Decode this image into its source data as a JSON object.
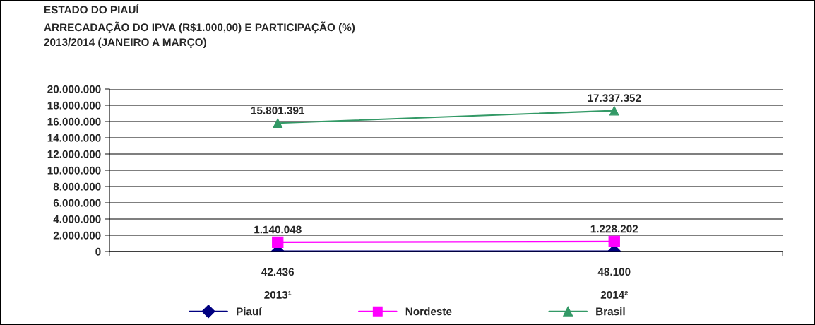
{
  "chart_data": {
    "type": "line",
    "title": "ESTADO DO PIAUÍ\nARRECADAÇÃO DO IPVA (R$1.000,00) E PARTICIPAÇÃO (%)\n2013/2014 (JANEIRO A MARÇO)",
    "categories": [
      "2013¹",
      "2014²"
    ],
    "series": [
      {
        "name": "Piauí",
        "color": "#000080",
        "marker": "diamond",
        "values": [
          42436,
          48100
        ],
        "value_labels": [
          "42.436",
          "48.100"
        ]
      },
      {
        "name": "Nordeste",
        "color": "#ff00ff",
        "marker": "square",
        "values": [
          1140048,
          1228202
        ],
        "value_labels": [
          "1.140.048",
          "1.228.202"
        ]
      },
      {
        "name": "Brasil",
        "color": "#339966",
        "marker": "triangle",
        "values": [
          15801391,
          17337352
        ],
        "value_labels": [
          "15.801.391",
          "17.337.352"
        ]
      }
    ],
    "ylim": [
      0,
      20000000
    ],
    "yticks": [
      0,
      {
        "value": 2000000,
        "label": "2.000.000"
      },
      {
        "value": 4000000,
        "label": "4.000.000"
      },
      {
        "value": 6000000,
        "label": "6.000.000"
      },
      {
        "value": 8000000,
        "label": "8.000.000"
      },
      {
        "value": 10000000,
        "label": "10.000.000"
      },
      {
        "value": 12000000,
        "label": "12.000.000"
      },
      {
        "value": 14000000,
        "label": "14.000.000"
      },
      {
        "value": 16000000,
        "label": "16.000.000"
      },
      {
        "value": 18000000,
        "label": "18.000.000"
      },
      {
        "value": 20000000,
        "label": "20.000.000"
      }
    ],
    "grid": "y",
    "legend": "bottom"
  }
}
